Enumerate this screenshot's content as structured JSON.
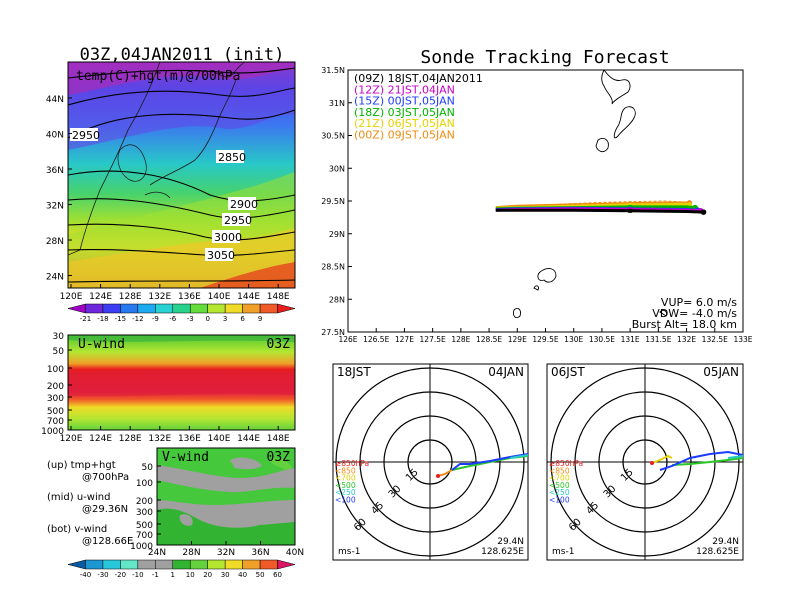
{
  "init_title": "03Z,04JAN2011 (init)",
  "main_title": "Sonde Tracking Forecast",
  "top_panel": {
    "label": "temp(C)+hgt(m)@700hPa",
    "lat_ticks": [
      "44N",
      "40N",
      "36N",
      "32N",
      "28N",
      "24N"
    ],
    "lon_ticks": [
      "120E",
      "124E",
      "128E",
      "132E",
      "136E",
      "140E",
      "144E",
      "148E"
    ],
    "contour_labels": [
      "2950",
      "2850",
      "2900",
      "2950",
      "3000",
      "3050"
    ],
    "colorbar_ticks": [
      "-21",
      "-18",
      "-15",
      "-12",
      "-9",
      "-6",
      "-3",
      "0",
      "3",
      "6",
      "9"
    ],
    "colorbar_colors": [
      "#a000c8",
      "#6e28dc",
      "#3c3cf0",
      "#2878f0",
      "#1eaaf0",
      "#28d2d2",
      "#28d28c",
      "#64dc3c",
      "#b4e632",
      "#f0dc28",
      "#f0a028",
      "#f05a28",
      "#e61e1e"
    ]
  },
  "mid_panel": {
    "label": "U-wind",
    "time": "03Z",
    "p_ticks": [
      "30",
      "50",
      "100",
      "200",
      "300",
      "500",
      "700",
      "1000"
    ],
    "lon_ticks": [
      "120E",
      "124E",
      "128E",
      "132E",
      "136E",
      "140E",
      "144E",
      "148E"
    ]
  },
  "bot_panel": {
    "label": "V-wind",
    "time": "03Z",
    "p_ticks": [
      "50",
      "100",
      "200",
      "300",
      "500",
      "700",
      "1000"
    ],
    "lat_ticks": [
      "24N",
      "28N",
      "32N",
      "36N",
      "40N"
    ],
    "colorbar_ticks": [
      "-40",
      "-30",
      "-20",
      "-10",
      "-1",
      "1",
      "10",
      "20",
      "30",
      "40",
      "50",
      "60"
    ],
    "colorbar_colors": [
      "#0a5aa0",
      "#1e96d2",
      "#28c8dc",
      "#64e6c8",
      "#a0a0a0",
      "#a0a0a0",
      "#32b432",
      "#64d23c",
      "#b4e632",
      "#f0dc28",
      "#f0a028",
      "#f05a28",
      "#dc1464"
    ]
  },
  "legend_notes": {
    "up_1": "(up) tmp+hgt",
    "up_2": "@700hPa",
    "mid_1": "(mid) u-wind",
    "mid_2": "@29.36N",
    "bot_1": "(bot) v-wind",
    "bot_2": "@128.66E"
  },
  "map_panel": {
    "lat_ticks": [
      "31.5N",
      "31N",
      "30.5N",
      "30N",
      "29.5N",
      "29N",
      "28.5N",
      "28N",
      "27.5N"
    ],
    "lon_ticks": [
      "126E",
      "126.5E",
      "127E",
      "127.5E",
      "128E",
      "128.5E",
      "129E",
      "129.5E",
      "130E",
      "130.5E",
      "131E",
      "131.5E",
      "132E",
      "132.5E",
      "133E"
    ],
    "legend": [
      {
        "text": "(09Z)  18JST,04JAN2011",
        "color": "#000000"
      },
      {
        "text": "(12Z)  21JST,04JAN",
        "color": "#c800c8"
      },
      {
        "text": "(15Z)  00JST,05JAN",
        "color": "#1e3cff"
      },
      {
        "text": "(18Z)  03JST,05JAN",
        "color": "#00b400"
      },
      {
        "text": "(21Z)  06JST,05JAN",
        "color": "#e6d200"
      },
      {
        "text": "(00Z)  09JST,05JAN",
        "color": "#f08c14"
      }
    ],
    "params": [
      "VUP=  6.0  m/s",
      "VDW=  -4.0  m/s",
      "Burst Alt=  18.0  km"
    ]
  },
  "polar_panels": [
    {
      "left": "18JST",
      "right": "04JAN",
      "lat": "29.4N",
      "lon": "128.625E",
      "unit": "ms-1"
    },
    {
      "left": "06JST",
      "right": "05JAN",
      "lat": "29.4N",
      "lon": "128.625E",
      "unit": "ms-1"
    }
  ],
  "polar_common": {
    "ring_labels": [
      "15",
      "30",
      "45",
      "60"
    ],
    "levels": [
      {
        "text": "≥850hPa",
        "color": "#e61e1e"
      },
      {
        "text": "<850",
        "color": "#f08c14"
      },
      {
        "text": "<700",
        "color": "#e6d200"
      },
      {
        "text": "<500",
        "color": "#28c828"
      },
      {
        "text": "<250",
        "color": "#28c8c8"
      },
      {
        "text": "<100",
        "color": "#1e3cff"
      }
    ]
  },
  "chart_data": {
    "type": "line",
    "title": "Sonde Tracking Forecast",
    "xlabel": "",
    "ylabel": "",
    "xlim": [
      126,
      133
    ],
    "ylim": [
      27.5,
      31.5
    ],
    "series": [
      {
        "name": "(09Z)  18JST,04JAN2011",
        "color": "#000000",
        "x": [
          128.62,
          129.0,
          130.0,
          131.0,
          132.0,
          132.3
        ],
        "y": [
          29.36,
          29.36,
          29.36,
          29.35,
          29.34,
          29.33
        ]
      },
      {
        "name": "(12Z)  21JST,04JAN",
        "color": "#c800c8",
        "x": [
          128.62,
          129.0,
          130.0,
          131.0,
          132.0,
          132.25
        ],
        "y": [
          29.36,
          29.37,
          29.38,
          29.37,
          29.36,
          29.35
        ]
      },
      {
        "name": "(15Z)  00JST,05JAN",
        "color": "#1e3cff",
        "x": [
          128.62,
          129.0,
          130.0,
          131.0,
          132.0,
          132.2
        ],
        "y": [
          29.37,
          29.38,
          29.39,
          29.38,
          29.37,
          29.36
        ]
      },
      {
        "name": "(18Z)  03JST,05JAN",
        "color": "#00b400",
        "x": [
          128.62,
          129.0,
          130.0,
          131.0,
          132.0,
          132.15
        ],
        "y": [
          29.38,
          29.39,
          29.4,
          29.41,
          29.41,
          29.4
        ]
      },
      {
        "name": "(21Z)  06JST,05JAN",
        "color": "#e6d200",
        "x": [
          128.62,
          129.0,
          130.0,
          131.0,
          132.0,
          132.05
        ],
        "y": [
          29.39,
          29.4,
          29.42,
          29.44,
          29.45,
          29.44
        ]
      },
      {
        "name": "(00Z)  09JST,05JAN",
        "color": "#f08c14",
        "x": [
          128.62,
          129.0,
          130.0,
          131.0,
          131.8,
          132.05
        ],
        "y": [
          29.4,
          29.42,
          29.44,
          29.46,
          29.47,
          29.47
        ]
      }
    ]
  }
}
